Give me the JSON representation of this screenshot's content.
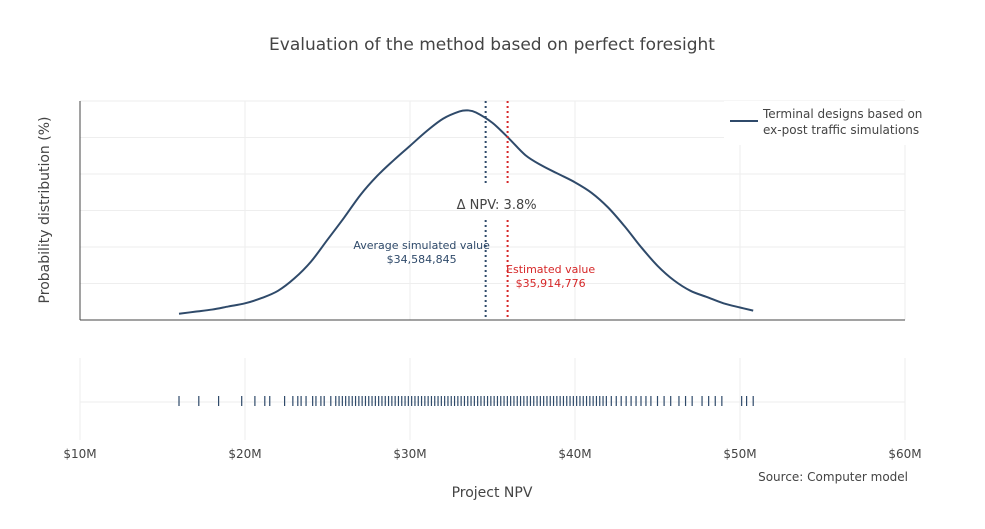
{
  "chart_data": {
    "type": "line",
    "title": "Evaluation of the method based on perfect foresight",
    "xlabel": "Project NPV",
    "ylabel": "Probability distribution (%)",
    "xlim": [
      10000000,
      60000000
    ],
    "x_ticks": [
      10000000,
      20000000,
      30000000,
      40000000,
      50000000,
      60000000
    ],
    "x_tick_labels": [
      "$10M",
      "$20M",
      "$30M",
      "$40M",
      "$50M",
      "$60M"
    ],
    "grid": true,
    "legend_position": "top-right",
    "source": "Source: Computer model",
    "colors": {
      "series": "#2f4a6a",
      "estimate": "#d62728",
      "text": "#444444",
      "axis": "#444444",
      "grid": "#eeeeee"
    },
    "series": [
      {
        "name": "Terminal designs based on ex-post traffic simulations",
        "legend_lines": [
          "Terminal designs based on",
          "ex-post traffic simulations"
        ],
        "x": [
          16000000,
          17000000,
          18000000,
          19000000,
          20000000,
          21000000,
          22000000,
          23000000,
          24000000,
          25000000,
          26000000,
          27000000,
          28000000,
          29000000,
          30000000,
          31000000,
          32000000,
          33000000,
          33500000,
          34000000,
          35000000,
          36000000,
          37000000,
          38000000,
          39000000,
          40000000,
          41000000,
          42000000,
          43000000,
          44000000,
          45000000,
          46000000,
          47000000,
          48000000,
          49000000,
          50000000,
          50800000
        ],
        "y": [
          3.0,
          4.0,
          5.0,
          6.5,
          8.0,
          10.5,
          14.0,
          20.0,
          28.0,
          38.5,
          49.0,
          60.0,
          69.0,
          76.5,
          83.5,
          90.5,
          96.5,
          100.0,
          100.5,
          99.5,
          94.5,
          87.0,
          79.0,
          74.0,
          70.0,
          66.0,
          61.0,
          54.0,
          45.0,
          35.0,
          26.0,
          19.0,
          14.0,
          11.0,
          8.0,
          6.0,
          4.5
        ]
      }
    ],
    "ylim": [
      0,
      105
    ],
    "rug": [
      16000000,
      17200000,
      18400000,
      19800000,
      20600000,
      21200000,
      21500000,
      22400000,
      22900000,
      23200000,
      23400000,
      23700000,
      24100000,
      24300000,
      24600000,
      24800000,
      25200000,
      25500000,
      25700000,
      25900000,
      26100000,
      26300000,
      26500000,
      26700000,
      26900000,
      27100000,
      27300000,
      27500000,
      27700000,
      27900000,
      28100000,
      28300000,
      28500000,
      28700000,
      28900000,
      29100000,
      29300000,
      29500000,
      29700000,
      29900000,
      30100000,
      30300000,
      30500000,
      30700000,
      30900000,
      31100000,
      31300000,
      31500000,
      31700000,
      31900000,
      32100000,
      32300000,
      32500000,
      32700000,
      32900000,
      33100000,
      33300000,
      33500000,
      33700000,
      33900000,
      34100000,
      34300000,
      34500000,
      34700000,
      34900000,
      35100000,
      35300000,
      35500000,
      35700000,
      35900000,
      36100000,
      36300000,
      36500000,
      36700000,
      36900000,
      37100000,
      37300000,
      37500000,
      37700000,
      37900000,
      38100000,
      38300000,
      38500000,
      38700000,
      38900000,
      39100000,
      39300000,
      39500000,
      39700000,
      39900000,
      40100000,
      40300000,
      40500000,
      40700000,
      40900000,
      41100000,
      41300000,
      41500000,
      41700000,
      41900000,
      42200000,
      42500000,
      42800000,
      43100000,
      43400000,
      43700000,
      44000000,
      44300000,
      44600000,
      45000000,
      45400000,
      45800000,
      46300000,
      46700000,
      47100000,
      47700000,
      48100000,
      48500000,
      48900000,
      50100000,
      50400000,
      50800000
    ],
    "vlines": [
      {
        "name": "average",
        "x": 34584845,
        "label_lines": [
          "Average simulated value",
          "$34,584,845"
        ],
        "color": "#2f4a6a"
      },
      {
        "name": "estimate",
        "x": 35914776,
        "label_lines": [
          "Estimated value",
          "$35,914,776"
        ],
        "color": "#d62728"
      }
    ],
    "delta_label": "Δ NPV: 3.8%"
  }
}
